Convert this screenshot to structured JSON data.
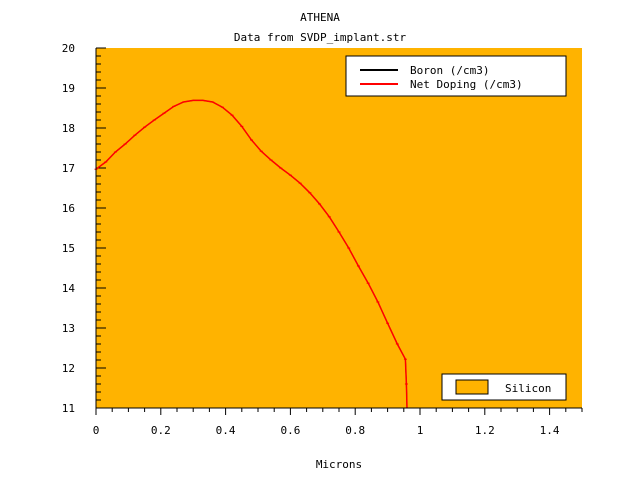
{
  "chart_data": {
    "type": "line",
    "title": "ATHENA",
    "subtitle": "Data from SVDP_implant.str",
    "xlabel": "Microns",
    "ylabel": "",
    "xlim": [
      0,
      1.5
    ],
    "ylim": [
      11,
      20
    ],
    "x_ticks": [
      "0",
      "0.2",
      "0.4",
      "0.6",
      "0.8",
      "1",
      "1.2",
      "1.4"
    ],
    "y_ticks": [
      "11",
      "12",
      "13",
      "14",
      "15",
      "16",
      "17",
      "18",
      "19",
      "20"
    ],
    "background_color": "#FFB300",
    "legend": {
      "position": "top-right",
      "entries": [
        {
          "label": "Boron (/cm3)",
          "color": "#000000"
        },
        {
          "label": "Net Doping (/cm3)",
          "color": "#ff0000"
        }
      ]
    },
    "material_legend": {
      "position": "bottom-right",
      "label": "Silicon",
      "color": "#FFB300"
    },
    "series": [
      {
        "name": "Boron (/cm3)",
        "color": "#000000",
        "x": [
          0,
          0.03,
          0.06,
          0.09,
          0.12,
          0.15,
          0.18,
          0.21,
          0.24,
          0.27,
          0.3,
          0.33,
          0.36,
          0.39,
          0.42,
          0.45,
          0.48,
          0.51,
          0.54,
          0.57,
          0.6,
          0.63,
          0.66,
          0.69,
          0.72,
          0.75,
          0.78,
          0.81,
          0.84,
          0.87,
          0.9,
          0.93,
          0.955,
          0.958,
          0.96
        ],
        "values": [
          16.97,
          17.15,
          17.4,
          17.6,
          17.82,
          18.02,
          18.2,
          18.37,
          18.54,
          18.65,
          18.69,
          18.69,
          18.65,
          18.52,
          18.32,
          18.04,
          17.7,
          17.42,
          17.2,
          17.0,
          16.82,
          16.62,
          16.38,
          16.1,
          15.78,
          15.4,
          15.0,
          14.55,
          14.12,
          13.65,
          13.12,
          12.6,
          12.22,
          11.6,
          11.0
        ]
      },
      {
        "name": "Net Doping (/cm3)",
        "color": "#ff0000",
        "x": [
          0,
          0.03,
          0.06,
          0.09,
          0.12,
          0.15,
          0.18,
          0.21,
          0.24,
          0.27,
          0.3,
          0.33,
          0.36,
          0.39,
          0.42,
          0.45,
          0.48,
          0.51,
          0.54,
          0.57,
          0.6,
          0.63,
          0.66,
          0.69,
          0.72,
          0.75,
          0.78,
          0.81,
          0.84,
          0.87,
          0.9,
          0.93,
          0.955,
          0.958,
          0.96
        ],
        "values": [
          16.97,
          17.15,
          17.4,
          17.6,
          17.82,
          18.02,
          18.2,
          18.37,
          18.54,
          18.65,
          18.69,
          18.69,
          18.65,
          18.52,
          18.32,
          18.04,
          17.7,
          17.42,
          17.2,
          17.0,
          16.82,
          16.62,
          16.38,
          16.1,
          15.78,
          15.4,
          15.0,
          14.55,
          14.12,
          13.65,
          13.12,
          12.6,
          12.22,
          11.6,
          11.0
        ]
      }
    ]
  }
}
